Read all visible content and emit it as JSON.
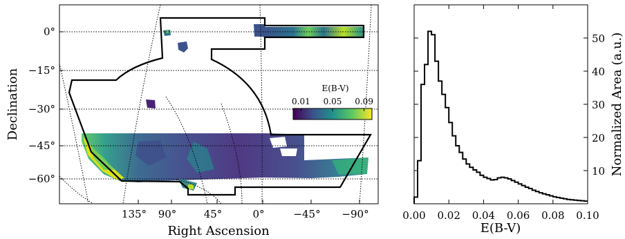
{
  "chart_data": [
    {
      "type": "heatmap",
      "title": "",
      "xlabel": "Right Ascension",
      "ylabel": "Declination",
      "x_tick_labels": [
        "135°",
        "90°",
        "45°",
        "0°",
        "−45°",
        "−90°"
      ],
      "y_tick_labels": [
        "0°",
        "−15°",
        "−30°",
        "−45°",
        "−60°"
      ],
      "colorbar": {
        "label": "E(B-V)",
        "tick_labels": [
          "0.01",
          "0.05",
          "0.09"
        ],
        "range": [
          0.0,
          0.1
        ],
        "colormap": "viridis"
      },
      "grid": true,
      "regions": [
        "survey-footprint-outline",
        "stripe-82-strip",
        "dust-map-coverage"
      ]
    },
    {
      "type": "line",
      "style": "step",
      "title": "",
      "xlabel": "E(B-V)",
      "ylabel": "Normalized Area (a.u.)",
      "xlim": [
        0.0,
        0.1
      ],
      "ylim": [
        0,
        60
      ],
      "x_tick_labels": [
        "0.00",
        "0.02",
        "0.04",
        "0.06",
        "0.08",
        "0.10"
      ],
      "y_tick_labels": [
        "10",
        "20",
        "30",
        "40",
        "50"
      ],
      "y_axis_position": "right",
      "grid": false,
      "x": [
        0.0,
        0.002,
        0.004,
        0.006,
        0.008,
        0.01,
        0.012,
        0.014,
        0.016,
        0.018,
        0.02,
        0.022,
        0.024,
        0.026,
        0.028,
        0.03,
        0.032,
        0.034,
        0.036,
        0.038,
        0.04,
        0.042,
        0.044,
        0.046,
        0.048,
        0.05,
        0.052,
        0.054,
        0.056,
        0.058,
        0.06,
        0.062,
        0.064,
        0.066,
        0.068,
        0.07,
        0.072,
        0.074,
        0.076,
        0.078,
        0.08,
        0.082,
        0.084,
        0.086,
        0.088,
        0.09,
        0.092,
        0.094,
        0.096,
        0.098
      ],
      "values": [
        2,
        13,
        36,
        42,
        52,
        51,
        43,
        37,
        33,
        29,
        24.5,
        20.5,
        17.5,
        15.5,
        13.5,
        12,
        11,
        10.2,
        9.5,
        8.6,
        8,
        7.6,
        7.2,
        7.3,
        7.8,
        8,
        7.8,
        7.5,
        7,
        6.5,
        6,
        5.5,
        5,
        4.6,
        4.1,
        3.7,
        3.3,
        3,
        2.7,
        2.4,
        2.1,
        1.9,
        1.7,
        1.5,
        1.3,
        1.2,
        1.1,
        1.0,
        0.9,
        0.8
      ]
    }
  ]
}
